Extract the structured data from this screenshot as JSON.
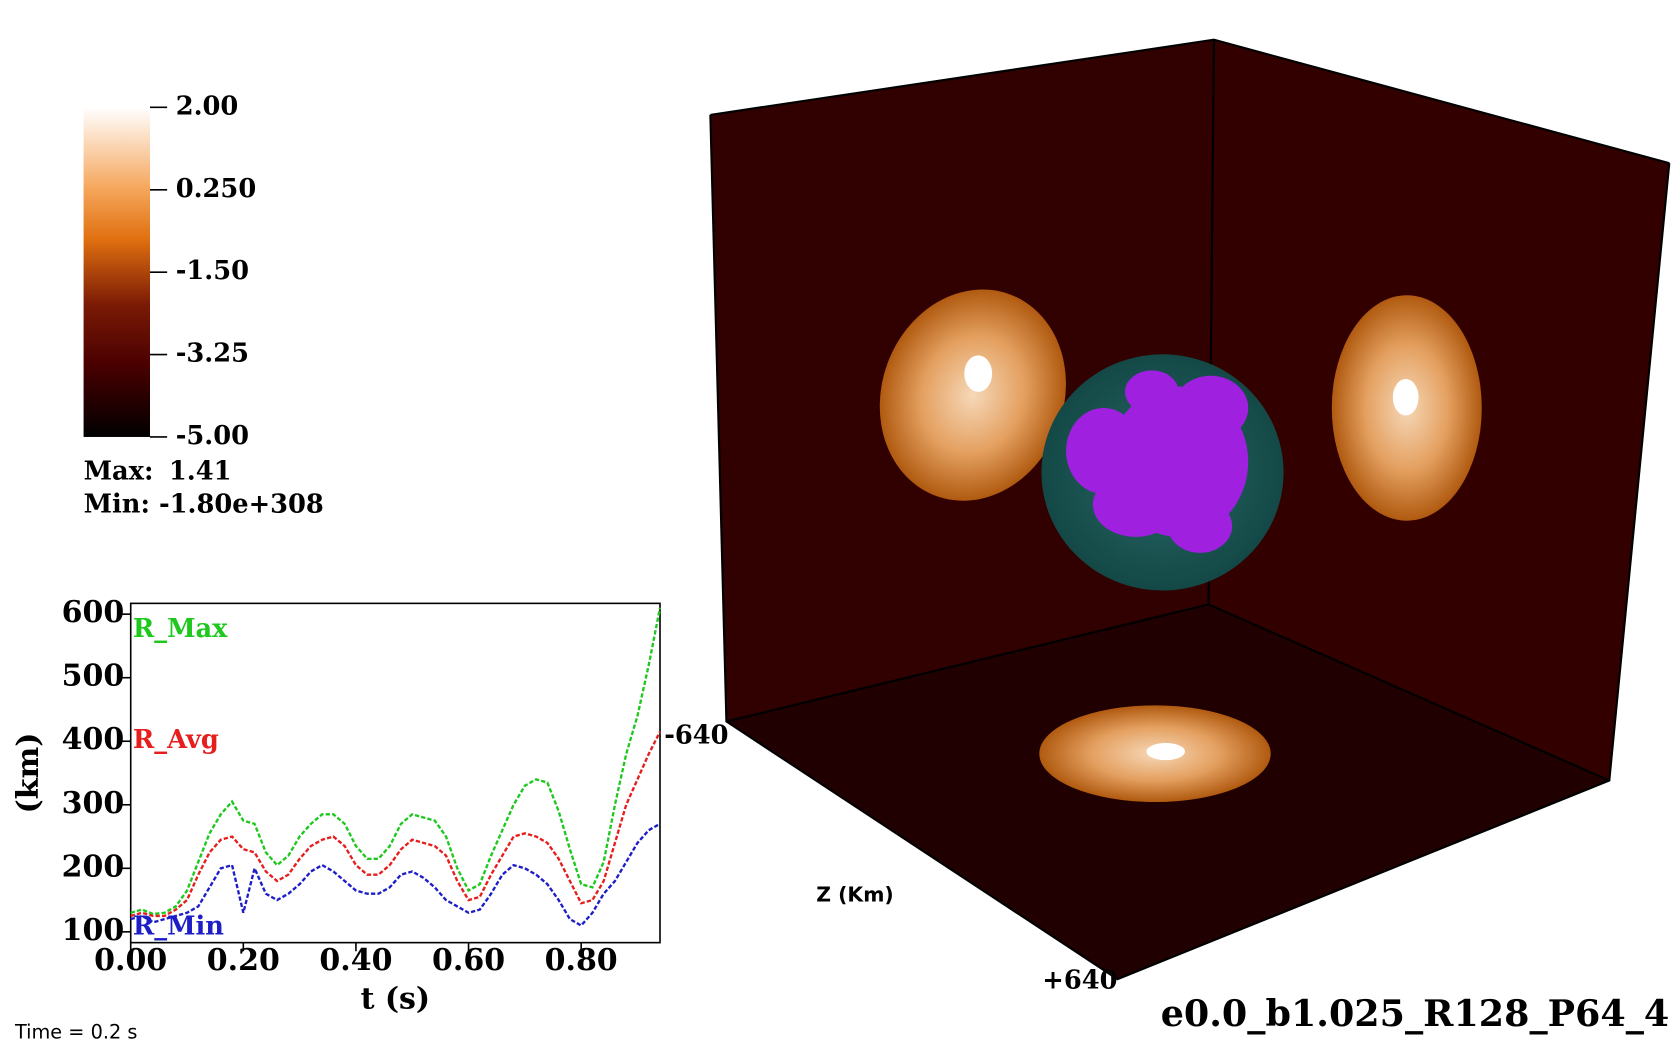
{
  "colorbar": {
    "ticks": [
      "2.00",
      "0.250",
      "-1.50",
      "-3.25",
      "-5.00"
    ],
    "max_label": "Max:",
    "max": "1.41",
    "min_label": "Min:",
    "min": "-1.80e+308"
  },
  "chart_data": {
    "type": "line",
    "ylabel": "(km)",
    "xlabel": "t (s)",
    "x": [
      0,
      0.02,
      0.04,
      0.06,
      0.08,
      0.1,
      0.12,
      0.14,
      0.16,
      0.18,
      0.2,
      0.22,
      0.24,
      0.26,
      0.28,
      0.3,
      0.32,
      0.34,
      0.36,
      0.38,
      0.4,
      0.42,
      0.44,
      0.46,
      0.48,
      0.5,
      0.52,
      0.54,
      0.56,
      0.58,
      0.6,
      0.62,
      0.64,
      0.66,
      0.68,
      0.7,
      0.72,
      0.74,
      0.76,
      0.78,
      0.8,
      0.82,
      0.84,
      0.86,
      0.88,
      0.9,
      0.92,
      0.94
    ],
    "series": [
      {
        "name": "R_Max",
        "color": "#1ec81e",
        "values": [
          130,
          135,
          128,
          130,
          140,
          165,
          210,
          255,
          285,
          305,
          275,
          270,
          225,
          205,
          220,
          250,
          270,
          285,
          285,
          270,
          235,
          215,
          215,
          235,
          270,
          285,
          280,
          275,
          250,
          200,
          165,
          175,
          220,
          260,
          300,
          330,
          340,
          335,
          290,
          230,
          175,
          170,
          210,
          300,
          380,
          440,
          520,
          610
        ]
      },
      {
        "name": "R_Avg",
        "color": "#e61e1e",
        "values": [
          125,
          130,
          125,
          125,
          135,
          150,
          190,
          225,
          245,
          250,
          230,
          225,
          195,
          180,
          190,
          215,
          235,
          245,
          250,
          235,
          205,
          190,
          190,
          205,
          230,
          245,
          240,
          235,
          220,
          180,
          150,
          155,
          190,
          220,
          250,
          255,
          250,
          240,
          215,
          180,
          145,
          150,
          180,
          240,
          300,
          340,
          380,
          415
        ]
      },
      {
        "name": "R_Min",
        "color": "#1e1ec8",
        "values": [
          120,
          125,
          115,
          120,
          125,
          130,
          140,
          170,
          200,
          205,
          130,
          200,
          160,
          150,
          160,
          175,
          195,
          205,
          195,
          180,
          165,
          160,
          160,
          170,
          190,
          195,
          185,
          170,
          150,
          140,
          130,
          135,
          160,
          190,
          205,
          200,
          190,
          175,
          150,
          120,
          110,
          130,
          160,
          180,
          210,
          240,
          260,
          270
        ]
      }
    ],
    "xlim": [
      0,
      0.94
    ],
    "ylim": [
      83,
      617
    ],
    "xticks": [
      {
        "value": 0,
        "label": "0.00"
      },
      {
        "value": 0.2,
        "label": "0.20"
      },
      {
        "value": 0.4,
        "label": "0.40"
      },
      {
        "value": 0.6,
        "label": "0.60"
      },
      {
        "value": 0.8,
        "label": "0.80"
      }
    ],
    "yticks": [
      100,
      200,
      300,
      400,
      500,
      600
    ]
  },
  "axes3d": {
    "z_label": "Z (Km)",
    "tick_min": "-640",
    "tick_max": "+640"
  },
  "time_label": "Time = 0.2 s",
  "run_name": "e0.0_b1.025_R128_P64_4"
}
